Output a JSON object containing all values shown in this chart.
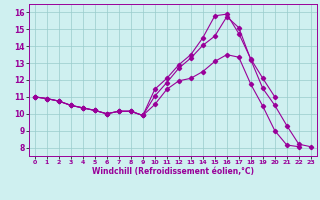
{
  "xlabel": "Windchill (Refroidissement éolien,°C)",
  "background_color": "#cff0f0",
  "line_color": "#990099",
  "grid_color": "#99cccc",
  "xlim": [
    -0.5,
    23.5
  ],
  "ylim": [
    7.5,
    16.5
  ],
  "xticks": [
    0,
    1,
    2,
    3,
    4,
    5,
    6,
    7,
    8,
    9,
    10,
    11,
    12,
    13,
    14,
    15,
    16,
    17,
    18,
    19,
    20,
    21,
    22,
    23
  ],
  "yticks": [
    8,
    9,
    10,
    11,
    12,
    13,
    14,
    15,
    16
  ],
  "line1_x": [
    0,
    1,
    2,
    3,
    4,
    5,
    6,
    7,
    8,
    9,
    10,
    11,
    12,
    13,
    14,
    15,
    16,
    17,
    18,
    19,
    20,
    21,
    22
  ],
  "line1_y": [
    11.0,
    10.9,
    10.75,
    10.5,
    10.35,
    10.2,
    10.0,
    10.15,
    10.15,
    9.9,
    10.55,
    11.45,
    11.95,
    12.1,
    12.5,
    13.1,
    13.5,
    13.35,
    11.75,
    10.45,
    9.0,
    8.15,
    8.05
  ],
  "line2_x": [
    0,
    1,
    2,
    3,
    4,
    5,
    6,
    7,
    8,
    9,
    10,
    11,
    12,
    13,
    14,
    15,
    16,
    17,
    18,
    19,
    20,
    21,
    22,
    23
  ],
  "line2_y": [
    11.0,
    10.9,
    10.75,
    10.5,
    10.35,
    10.2,
    10.0,
    10.15,
    10.15,
    9.9,
    11.05,
    11.85,
    12.7,
    13.3,
    14.05,
    14.6,
    15.75,
    15.1,
    13.2,
    11.5,
    10.5,
    9.3,
    8.2,
    8.05
  ],
  "line3_x": [
    0,
    1,
    2,
    3,
    4,
    5,
    6,
    7,
    8,
    9,
    10,
    11,
    12,
    13,
    14,
    15,
    16,
    17,
    18,
    19,
    20
  ],
  "line3_y": [
    11.0,
    10.9,
    10.75,
    10.5,
    10.35,
    10.2,
    10.0,
    10.15,
    10.15,
    9.9,
    11.45,
    12.1,
    12.9,
    13.5,
    14.5,
    15.8,
    15.9,
    14.75,
    13.25,
    12.1,
    11.0
  ]
}
